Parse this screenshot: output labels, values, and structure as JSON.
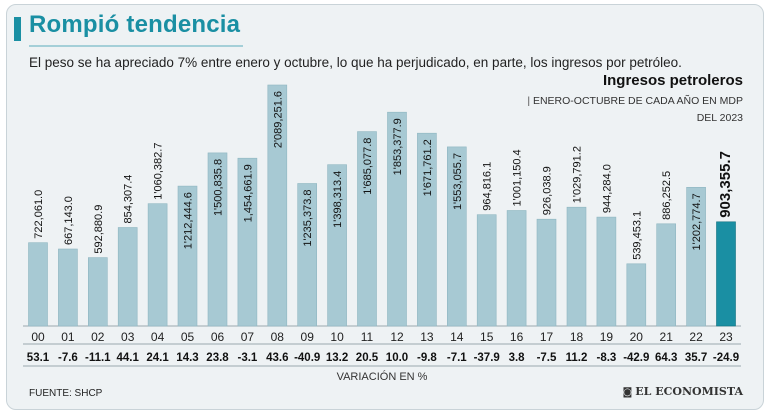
{
  "header": {
    "title": "Rompió tendencia",
    "subtitle": "El peso se ha apreciado 7% entre enero y octubre, lo que ha perjudicado, en parte, los ingresos por petróleo."
  },
  "colors": {
    "bar": "#a7c9d3",
    "highlight": "#1a8fa3",
    "accent": "#1a8fa3",
    "text": "#222222"
  },
  "chart_data": {
    "type": "bar",
    "title": "Ingresos petroleros",
    "note": "ENERO-OCTUBRE DE CADA AÑO EN MDP DEL 2023",
    "categories": [
      "00",
      "01",
      "02",
      "03",
      "04",
      "05",
      "06",
      "07",
      "08",
      "09",
      "10",
      "11",
      "12",
      "13",
      "14",
      "15",
      "16",
      "17",
      "18",
      "19",
      "20",
      "21",
      "22",
      "23"
    ],
    "values": [
      722061.0,
      667143.0,
      592880.9,
      854307.4,
      1060382.7,
      1212444.6,
      1500835.8,
      1454661.9,
      2089251.6,
      1235373.8,
      1398313.4,
      1685077.8,
      1853377.9,
      1671761.2,
      1553055.7,
      964816.1,
      1001150.4,
      926038.9,
      1029791.2,
      944284.0,
      539453.1,
      886252.5,
      1202774.7,
      903355.7
    ],
    "value_labels": [
      "722,061.0",
      "667,143.0",
      "592,880.9",
      "854,307.4",
      "1'060,382.7",
      "1'212,444.6",
      "1'500,835.8",
      "1,454,661.9",
      "2'089,251.6",
      "1'235,373.8",
      "1'398,313.4",
      "1'685,077.8",
      "1'853,377.9",
      "1'671,761.2",
      "1'553,055.7",
      "964,816.1",
      "1'001,150.4",
      "926,038.9",
      "1'029,791.2",
      "944,284.0",
      "539,453.1",
      "886,252.5",
      "1'202,774.7",
      "903,355.7"
    ],
    "variation": [
      "53.1",
      "-7.6",
      "-11.1",
      "44.1",
      "24.1",
      "14.3",
      "23.8",
      "-3.1",
      "43.6",
      "-40.9",
      "13.2",
      "20.5",
      "10.0",
      "-9.8",
      "-7.1",
      "-37.9",
      "3.8",
      "-7.5",
      "11.2",
      "-8.3",
      "-42.9",
      "64.3",
      "35.7",
      "-24.9"
    ],
    "variation_label": "VARIACIÓN EN %",
    "highlight_index": 23,
    "ylim": [
      0,
      2089251.6
    ]
  },
  "footer": {
    "source": "FUENTE: SHCP",
    "brand": "EL ECONOMISTA"
  }
}
